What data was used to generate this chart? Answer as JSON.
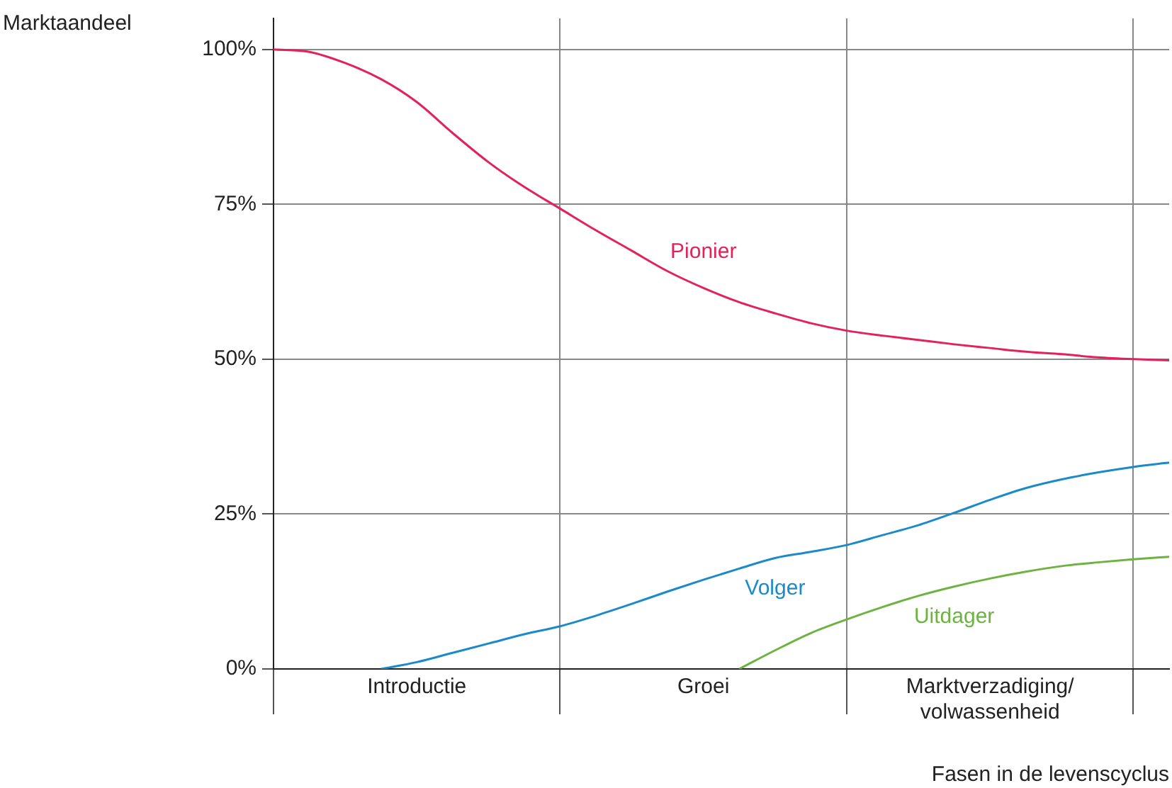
{
  "chart_data": {
    "type": "line",
    "ylabel": "Marktaandeel",
    "xlabel": "Fasen in de levenscyclus",
    "categories": [
      null,
      null,
      null,
      null,
      "Introductie",
      null,
      null,
      null,
      null,
      null,
      null,
      null,
      "Groei",
      null,
      null,
      null,
      null,
      null,
      null,
      null,
      "Marktverzadiging/volwassenheid",
      null,
      null,
      null,
      null,
      null
    ],
    "ylim": [
      0,
      105
    ],
    "yticks": [
      {
        "value": 0,
        "label": "0%"
      },
      {
        "value": 25,
        "label": "25%"
      },
      {
        "value": 50,
        "label": "50%"
      },
      {
        "value": 75,
        "label": "75%"
      },
      {
        "value": 100,
        "label": "100%"
      }
    ],
    "grid": true,
    "marker": "none",
    "line_style": "solid",
    "series": [
      {
        "name": "Pionier",
        "color": "#e4215a",
        "values": [
          100,
          99.6,
          97.8,
          95.2,
          91.5,
          86.5,
          81.8,
          77.8,
          74.3,
          70.8,
          67.5,
          64.2,
          61.5,
          59.2,
          57.4,
          55.8,
          54.6,
          53.8,
          53.1,
          52.4,
          51.8,
          51.2,
          50.8,
          50.3,
          50,
          49.8
        ]
      },
      {
        "name": "Volger",
        "color": "#1a8acb",
        "values": [
          null,
          null,
          null,
          0,
          1.1,
          2.6,
          4.1,
          5.6,
          6.9,
          8.6,
          10.5,
          12.5,
          14.4,
          16.2,
          17.9,
          18.9,
          20,
          21.6,
          23.2,
          25.2,
          27.3,
          29.2,
          30.6,
          31.7,
          32.6,
          33.3
        ]
      },
      {
        "name": "Uitdager",
        "color": "#6db33f",
        "values": [
          null,
          null,
          null,
          null,
          null,
          null,
          null,
          null,
          null,
          null,
          null,
          null,
          null,
          0,
          3,
          5.8,
          8,
          10,
          11.8,
          13.3,
          14.6,
          15.7,
          16.6,
          17.2,
          17.7,
          18.1
        ]
      }
    ]
  }
}
